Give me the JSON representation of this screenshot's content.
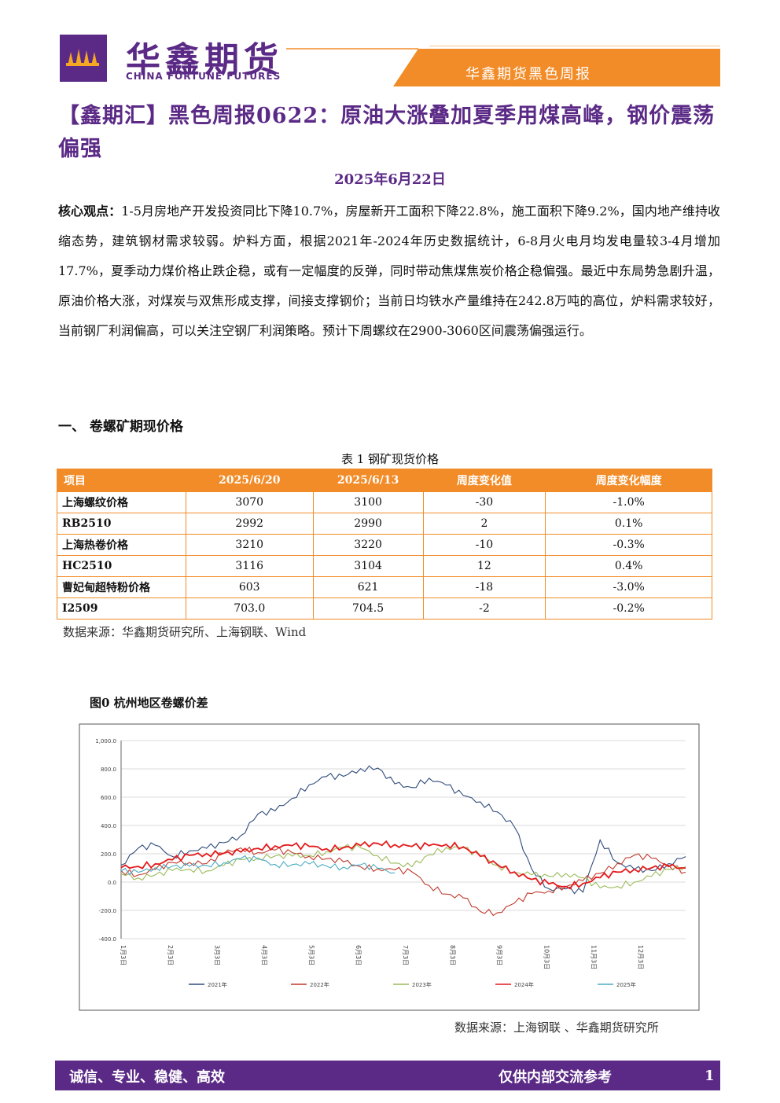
{
  "header": {
    "brand_cn": "华鑫期货",
    "brand_en": "CHINA FORTUNE FUTURES",
    "band_text": "华鑫期货黑色周报",
    "logo_icon": "fortune-logo-icon"
  },
  "report": {
    "title": "【鑫期汇】黑色周报0622：原油大涨叠加夏季用煤高峰，钢价震荡偏强",
    "date": "2025年6月22日",
    "core_label": "核心观点：",
    "core_text": "1-5月房地产开发投资同比下降10.7%，房屋新开工面积下降22.8%，施工面积下降9.2%，国内地产维持收缩态势，建筑钢材需求较弱。炉料方面，根据2021年-2024年历史数据统计，6-8月火电月均发电量较3-4月增加17.7%，夏季动力煤价格止跌企稳，或有一定幅度的反弹，同时带动焦煤焦炭价格企稳偏强。最近中东局势急剧升温，原油价格大涨，对煤炭与双焦形成支撑，间接支撑钢价；当前日均铁水产量维持在242.8万吨的高位，炉料需求较好，当前钢厂利润偏高，可以关注空钢厂利润策略。预计下周螺纹在2900-3060区间震荡偏强运行。"
  },
  "section1": {
    "heading": "一、 卷螺矿期现价格"
  },
  "table1": {
    "caption": "表 1 钢矿现货价格",
    "headers": [
      "项目",
      "2025/6/20",
      "2025/6/13",
      "周度变化值",
      "周度变化幅度"
    ],
    "rows": [
      [
        "上海螺纹价格",
        "3070",
        "3100",
        "-30",
        "-1.0%"
      ],
      [
        "RB2510",
        "2992",
        "2990",
        "2",
        "0.1%"
      ],
      [
        "上海热卷价格",
        "3210",
        "3220",
        "-10",
        "-0.3%"
      ],
      [
        "HC2510",
        "3116",
        "3104",
        "12",
        "0.4%"
      ],
      [
        "曹妃甸超特粉价格",
        "603",
        "621",
        "-18",
        "-3.0%"
      ],
      [
        "I2509",
        "703.0",
        "704.5",
        "-2",
        "-0.2%"
      ]
    ],
    "source": "数据来源：华鑫期货研究所、上海钢联、Wind",
    "header_color": "#f28c28"
  },
  "figure0": {
    "title": "图0 杭州地区卷螺价差",
    "source": "数据来源：上海钢联 、华鑫期货研究所"
  },
  "chart_data": {
    "type": "line",
    "ylim": [
      -400,
      1000
    ],
    "yticks": [
      "1,000.0",
      "800.0",
      "600.0",
      "400.0",
      "200.0",
      "0.0",
      "-200.0",
      "-400.0"
    ],
    "xticks": [
      "1月3日",
      "2月3日",
      "3月3日",
      "4月3日",
      "5月3日",
      "6月3日",
      "7月3日",
      "8月3日",
      "9月3日",
      "10月3日",
      "11月3日",
      "12月3日"
    ],
    "grid": true,
    "legend_position": "bottom",
    "series": [
      {
        "name": "2021年",
        "color": "#2f4b7c",
        "values": [
          120,
          230,
          250,
          180,
          230,
          250,
          280,
          320,
          470,
          500,
          600,
          700,
          750,
          740,
          790,
          800,
          700,
          680,
          740,
          680,
          600,
          560,
          500,
          400,
          100,
          -50,
          -60,
          -80,
          300,
          150,
          100,
          80,
          120,
          170
        ]
      },
      {
        "name": "2022年",
        "color": "#c0392b",
        "values": [
          80,
          60,
          100,
          140,
          130,
          120,
          200,
          250,
          220,
          230,
          200,
          170,
          160,
          150,
          120,
          100,
          80,
          60,
          -30,
          -80,
          -100,
          -200,
          -220,
          -160,
          -90,
          -60,
          -20,
          20,
          60,
          120,
          180,
          170,
          130,
          80
        ]
      },
      {
        "name": "2023年",
        "color": "#9bbb59",
        "values": [
          60,
          20,
          40,
          80,
          100,
          90,
          120,
          150,
          160,
          180,
          190,
          200,
          220,
          240,
          230,
          180,
          140,
          120,
          200,
          240,
          230,
          180,
          120,
          80,
          60,
          40,
          50,
          20,
          -40,
          -20,
          10,
          40,
          80,
          100
        ]
      },
      {
        "name": "2024年",
        "color": "#e41a1c",
        "values": [
          100,
          120,
          140,
          160,
          180,
          190,
          200,
          220,
          250,
          260,
          250,
          240,
          230,
          250,
          270,
          280,
          260,
          240,
          250,
          270,
          260,
          190,
          120,
          60,
          10,
          -10,
          -20,
          0,
          30,
          60,
          80,
          100,
          120,
          110
        ]
      },
      {
        "name": "2025年",
        "color": "#4bacc6",
        "values": [
          80,
          60,
          90,
          110,
          120,
          130,
          140,
          160,
          150,
          120,
          130,
          140,
          120,
          100,
          110,
          90,
          70
        ]
      }
    ]
  }
}
